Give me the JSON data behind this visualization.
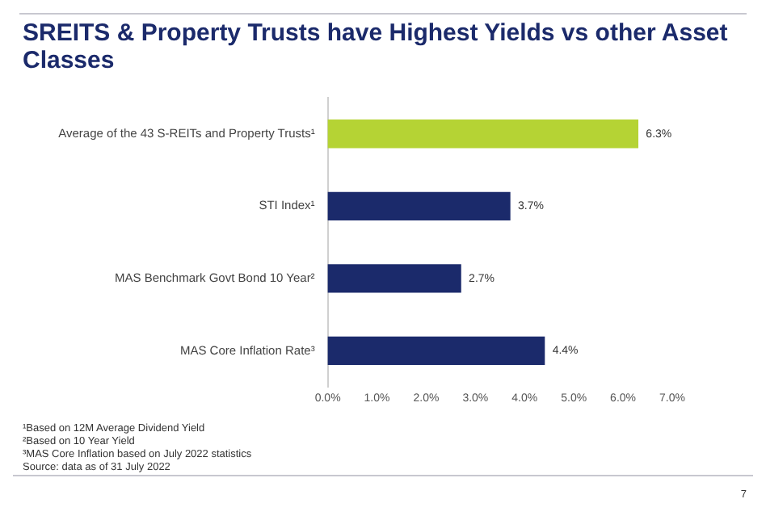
{
  "chart_data": {
    "type": "bar",
    "orientation": "horizontal",
    "title": "SREITS & Property Trusts have Highest Yields vs other Asset Classes",
    "categories": [
      "Average of the 43 S-REITs and Property Trusts¹",
      "STI Index¹",
      "MAS Benchmark Govt Bond 10 Year²",
      "MAS Core Inflation Rate³"
    ],
    "values": [
      6.3,
      3.7,
      2.7,
      4.4
    ],
    "colors": [
      "#b5d334",
      "#1b2a6b",
      "#1b2a6b",
      "#1b2a6b"
    ],
    "value_labels": [
      "6.3%",
      "3.7%",
      "2.7%",
      "4.4%"
    ],
    "xlim": [
      0,
      7
    ],
    "xticks": [
      {
        "value": 0,
        "label": "0.0%"
      },
      {
        "value": 1,
        "label": "1.0%"
      },
      {
        "value": 2,
        "label": "2.0%"
      },
      {
        "value": 3,
        "label": "3.0%"
      },
      {
        "value": 4,
        "label": "4.0%"
      },
      {
        "value": 5,
        "label": "5.0%"
      },
      {
        "value": 6,
        "label": "6.0%"
      },
      {
        "value": 7,
        "label": "7.0%"
      }
    ],
    "grid": false,
    "legend": false,
    "annotations": [
      "¹Based on 12M Average Dividend Yield",
      "²Based on 10 Year Yield",
      "³MAS Core Inflation based on July 2022 statistics",
      "Source: data as of 31 July 2022",
      "7"
    ]
  }
}
